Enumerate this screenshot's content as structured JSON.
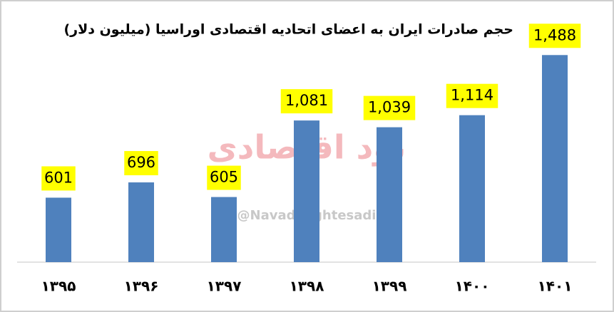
{
  "chart_data": {
    "type": "bar",
    "title": "حجم صادرات ایران به اعضای اتحادیه اقتصادی اوراسیا  (میلیون دلار)",
    "categories": [
      "۱۳۹۵",
      "۱۳۹۶",
      "۱۳۹۷",
      "۱۳۹۸",
      "۱۳۹۹",
      "۱۴۰۰",
      "۱۴۰۱"
    ],
    "values": [
      601,
      696,
      605,
      1081,
      1039,
      1114,
      1488
    ],
    "value_labels": [
      "601",
      "696",
      "605",
      "1,081",
      "1,039",
      "1,114",
      "1,488"
    ],
    "color": "#4f81bd",
    "label_background": "#ffff00",
    "ylim": [
      200,
      1600
    ],
    "watermark": [
      "نود اقتصادی",
      "@NavadeEghtesadi"
    ]
  }
}
